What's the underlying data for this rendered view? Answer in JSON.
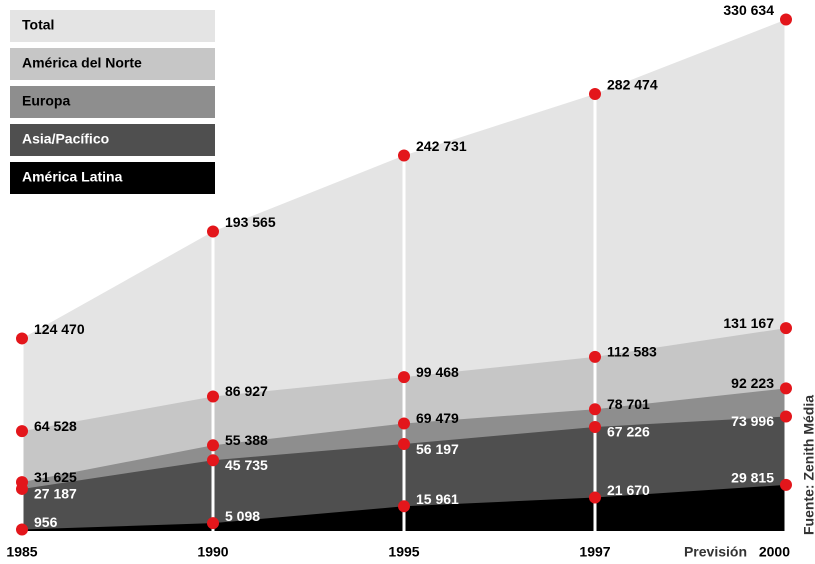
{
  "chart_data": {
    "type": "area",
    "categories": [
      "1985",
      "1990",
      "1995",
      "1997",
      "2000"
    ],
    "forecast_label": "Previsión",
    "source": "Fuente: Zenith Média",
    "ylim": [
      0,
      340000
    ],
    "series": [
      {
        "name": "Total",
        "color": "#e4e4e4",
        "values": [
          124470,
          193565,
          242731,
          282474,
          330634
        ],
        "value_labels": [
          "124 470",
          "193 565",
          "242 731",
          "282 474",
          "330 634"
        ]
      },
      {
        "name": "América del Norte",
        "color": "#c6c6c6",
        "values": [
          64528,
          86927,
          99468,
          112583,
          131167
        ],
        "value_labels": [
          "64 528",
          "86 927",
          "99 468",
          "112 583",
          "131 167"
        ]
      },
      {
        "name": "Europa",
        "color": "#8e8e8e",
        "values": [
          31625,
          55388,
          69479,
          78701,
          92223
        ],
        "value_labels": [
          "31 625",
          "55 388",
          "69 479",
          "78 701",
          "92 223"
        ]
      },
      {
        "name": "Asia/Pacífico",
        "color": "#4f4f4f",
        "values": [
          27187,
          45735,
          56197,
          67226,
          73996
        ],
        "value_labels": [
          "27 187",
          "45 735",
          "56 197",
          "67 226",
          "73 996"
        ]
      },
      {
        "name": "América Latina",
        "color": "#000000",
        "values": [
          956,
          5098,
          15961,
          21670,
          29815
        ],
        "value_labels": [
          "956",
          "5 098",
          "15 961",
          "21 670",
          "29 815"
        ]
      }
    ]
  }
}
